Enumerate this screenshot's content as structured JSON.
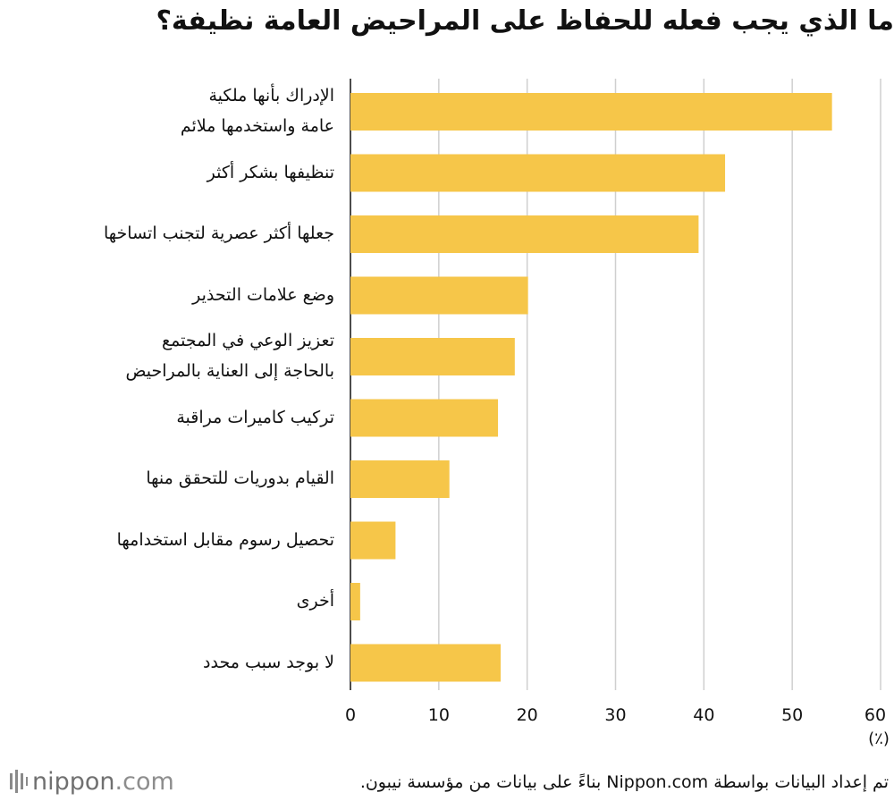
{
  "chart_data": {
    "type": "bar",
    "orientation": "horizontal",
    "title": "ما الذي يجب فعله للحفاظ على المراحيض العامة نظيفة؟",
    "categories": [
      [
        "الإدراك بأنها ملكية",
        "عامة واستخدمها ملائم"
      ],
      [
        "تنظيفها بشكر أكثر"
      ],
      [
        "جعلها أكثر عصرية لتجنب اتساخها"
      ],
      [
        "وضع علامات التحذير"
      ],
      [
        "تعزيز الوعي في المجتمع",
        "بالحاجة إلى العناية بالمراحيض"
      ],
      [
        "تركيب كاميرات مراقبة"
      ],
      [
        "القيام بدوريات للتحقق منها"
      ],
      [
        "تحصيل رسوم مقابل استخدامها"
      ],
      [
        "أخرى"
      ],
      [
        "لا بوجد سبب محدد"
      ]
    ],
    "values": [
      54.5,
      42.4,
      39.4,
      20.1,
      18.6,
      16.7,
      11.2,
      5.1,
      1.1,
      17.0
    ],
    "xlim": [
      0,
      60
    ],
    "ticks": [
      0,
      10,
      20,
      30,
      40,
      50,
      60
    ],
    "xlabel": "(٪)",
    "grid": true,
    "bar_color": "#f6c649",
    "grid_color": "#cfcfcf"
  },
  "footer": {
    "logo_brand": "nippon",
    "logo_suffix": ".com",
    "source": "تم إعداد البيانات بواسطة Nippon.com بناءً على بيانات من مؤسسة نيبون."
  }
}
